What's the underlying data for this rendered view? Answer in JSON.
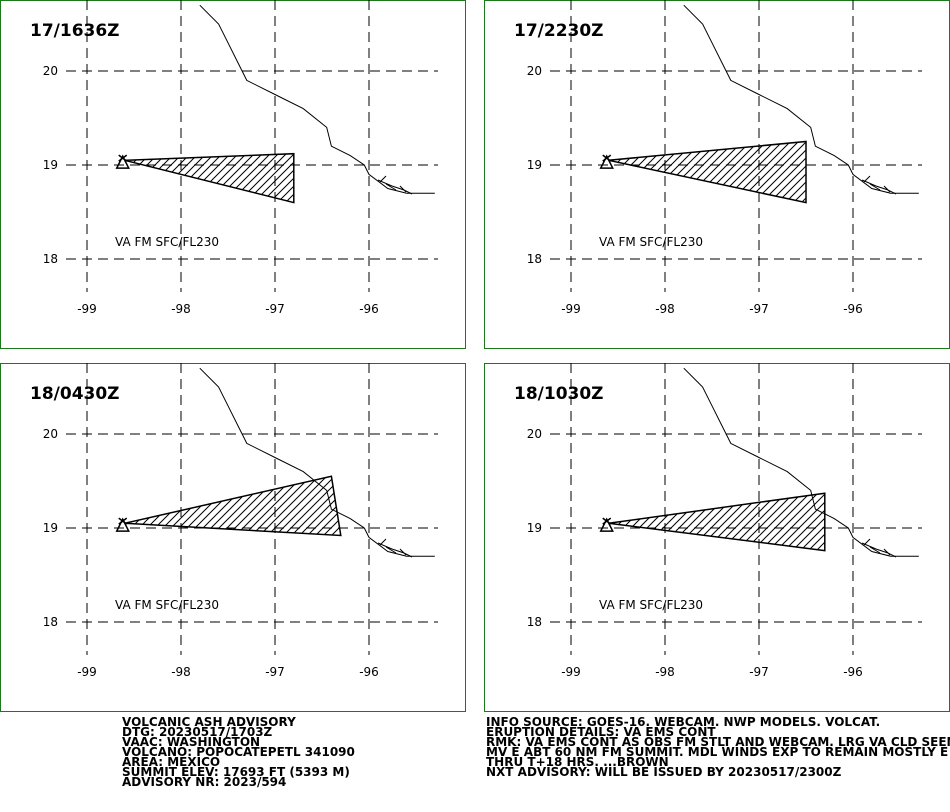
{
  "panels": [
    {
      "title": "17/1636Z",
      "layer_label": "VA FM SFC/FL230",
      "plume": [
        [
          -98.6,
          19.05
        ],
        [
          -96.8,
          19.12
        ],
        [
          -96.8,
          18.6
        ]
      ]
    },
    {
      "title": "17/2230Z",
      "layer_label": "VA FM SFC/FL230",
      "plume": [
        [
          -98.6,
          19.05
        ],
        [
          -96.5,
          19.25
        ],
        [
          -96.5,
          18.6
        ]
      ]
    },
    {
      "title": "18/0430Z",
      "layer_label": "VA FM SFC/FL230",
      "plume": [
        [
          -98.6,
          19.05
        ],
        [
          -96.4,
          19.55
        ],
        [
          -96.3,
          18.92
        ]
      ]
    },
    {
      "title": "18/1030Z",
      "layer_label": "VA FM SFC/FL230",
      "plume": [
        [
          -98.6,
          19.05
        ],
        [
          -96.3,
          19.37
        ],
        [
          -96.3,
          18.76
        ]
      ]
    }
  ],
  "axes": {
    "lon_ticks": [
      -99,
      -98,
      -97,
      -96
    ],
    "lon_labels": [
      "-99",
      "-98",
      "-97",
      "-96"
    ],
    "lat_ticks": [
      20,
      19,
      18
    ],
    "lat_labels": [
      "20",
      "19",
      "18"
    ]
  },
  "volcano": {
    "lon": -98.62,
    "lat": 19.02
  },
  "coastline": [
    [
      -97.8,
      20.7
    ],
    [
      -97.6,
      20.5
    ],
    [
      -97.5,
      20.3
    ],
    [
      -97.4,
      20.1
    ],
    [
      -97.3,
      19.9
    ],
    [
      -97.0,
      19.75
    ],
    [
      -96.7,
      19.6
    ],
    [
      -96.45,
      19.4
    ],
    [
      -96.4,
      19.2
    ],
    [
      -96.2,
      19.1
    ],
    [
      -96.05,
      19.0
    ],
    [
      -96.0,
      18.9
    ],
    [
      -95.8,
      18.75
    ],
    [
      -95.6,
      18.7
    ],
    [
      -95.3,
      18.7
    ]
  ],
  "advisory_left": [
    "VOLCANIC ASH ADVISORY",
    "DTG: 20230517/1703Z",
    "VAAC: WASHINGTON",
    "VOLCANO: POPOCATEPETL 341090",
    "AREA: MEXICO",
    "SUMMIT ELEV: 17693 FT (5393 M)",
    "ADVISORY NR: 2023/594"
  ],
  "advisory_right": [
    "INFO SOURCE: GOES-16. WEBCAM. NWP MODELS. VOLCAT.",
    "ERUPTION DETAILS: VA EMS CONT",
    "RMK: VA EMS CONT AS OBS FM STLT AND WEBCAM. LRG VA CLD SEEN",
    "MV E ABT 60 NM FM SUMMIT. MDL WINDS EXP TO REMAIN MOSTLY E",
    "THRU T+18 HRS. ...BROWN",
    "NXT ADVISORY: WILL BE ISSUED BY 20230517/2300Z"
  ]
}
